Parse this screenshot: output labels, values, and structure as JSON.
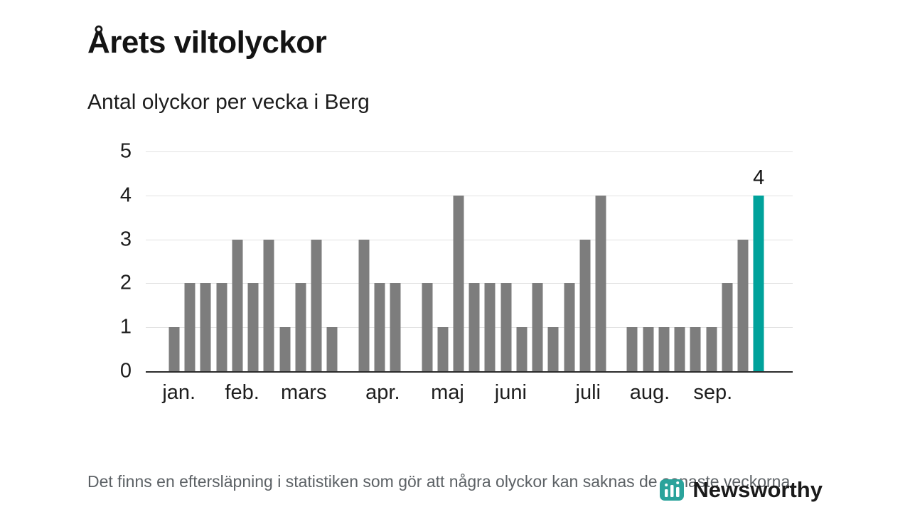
{
  "title": "Årets viltolyckor",
  "subtitle": "Antal olyckor per vecka i Berg",
  "footnote": "Det finns en eftersläpning i statistiken som gör att några olyckor kan saknas de senaste veckorna.",
  "branding": {
    "name": "Newsworthy",
    "icon": "bar-chart-logo-icon",
    "color": "#2aa39b"
  },
  "colors": {
    "bar": "#7d7d7d",
    "highlight": "#00a29b",
    "grid": "#e2e2e2",
    "axis": "#2b2b2b"
  },
  "chart_data": {
    "type": "bar",
    "title": "Antal olyckor per vecka i Berg",
    "x_unit": "week",
    "values": [
      1,
      2,
      2,
      2,
      3,
      2,
      3,
      1,
      2,
      3,
      1,
      0,
      3,
      2,
      2,
      0,
      2,
      1,
      4,
      2,
      2,
      2,
      1,
      2,
      1,
      2,
      3,
      4,
      0,
      1,
      1,
      1,
      1,
      1,
      1,
      2,
      3,
      4
    ],
    "highlight_index": 37,
    "highlight_value_label": "4",
    "y_ticks": [
      0,
      1,
      2,
      3,
      4,
      5
    ],
    "ylim": [
      0,
      5
    ],
    "grid": true,
    "months": [
      {
        "label": "jan.",
        "week": 0.3
      },
      {
        "label": "feb.",
        "week": 4.3
      },
      {
        "label": "mars",
        "week": 8.2
      },
      {
        "label": "apr.",
        "week": 13.2
      },
      {
        "label": "maj",
        "week": 17.3
      },
      {
        "label": "juni",
        "week": 21.3
      },
      {
        "label": "juli",
        "week": 26.2
      },
      {
        "label": "aug.",
        "week": 30.1
      },
      {
        "label": "sep.",
        "week": 34.1
      }
    ]
  }
}
